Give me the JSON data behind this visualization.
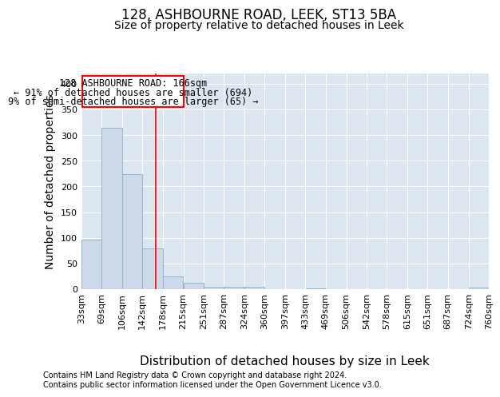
{
  "title": "128, ASHBOURNE ROAD, LEEK, ST13 5BA",
  "subtitle": "Size of property relative to detached houses in Leek",
  "xlabel": "Distribution of detached houses by size in Leek",
  "ylabel": "Number of detached properties",
  "footer_line1": "Contains HM Land Registry data © Crown copyright and database right 2024.",
  "footer_line2": "Contains public sector information licensed under the Open Government Licence v3.0.",
  "annotation_line1": "128 ASHBOURNE ROAD: 166sqm",
  "annotation_line2": "← 91% of detached houses are smaller (694)",
  "annotation_line3": "9% of semi-detached houses are larger (65) →",
  "bar_left_edges": [
    33,
    69,
    106,
    142,
    178,
    215,
    251,
    287,
    324,
    360,
    397,
    433,
    469,
    506,
    542,
    578,
    615,
    651,
    687,
    724
  ],
  "bar_widths": [
    36,
    37,
    36,
    36,
    37,
    36,
    36,
    37,
    36,
    37,
    36,
    36,
    37,
    36,
    36,
    37,
    36,
    36,
    37,
    36
  ],
  "bar_heights": [
    97,
    314,
    224,
    80,
    25,
    13,
    5,
    5,
    5,
    0,
    0,
    1,
    0,
    0,
    0,
    0,
    0,
    0,
    0,
    3
  ],
  "bar_color": "#ccd9e8",
  "bar_edgecolor": "#8aaec8",
  "tick_labels": [
    "33sqm",
    "69sqm",
    "106sqm",
    "142sqm",
    "178sqm",
    "215sqm",
    "251sqm",
    "287sqm",
    "324sqm",
    "360sqm",
    "397sqm",
    "433sqm",
    "469sqm",
    "506sqm",
    "542sqm",
    "578sqm",
    "615sqm",
    "651sqm",
    "687sqm",
    "724sqm",
    "760sqm"
  ],
  "red_line_x": 166,
  "ylim": [
    0,
    420
  ],
  "yticks": [
    0,
    50,
    100,
    150,
    200,
    250,
    300,
    350,
    400
  ],
  "bg_color": "#dce6f0",
  "title_fontsize": 12,
  "subtitle_fontsize": 10,
  "axis_label_fontsize": 10,
  "tick_fontsize": 8,
  "ann_fontsize": 8.5
}
